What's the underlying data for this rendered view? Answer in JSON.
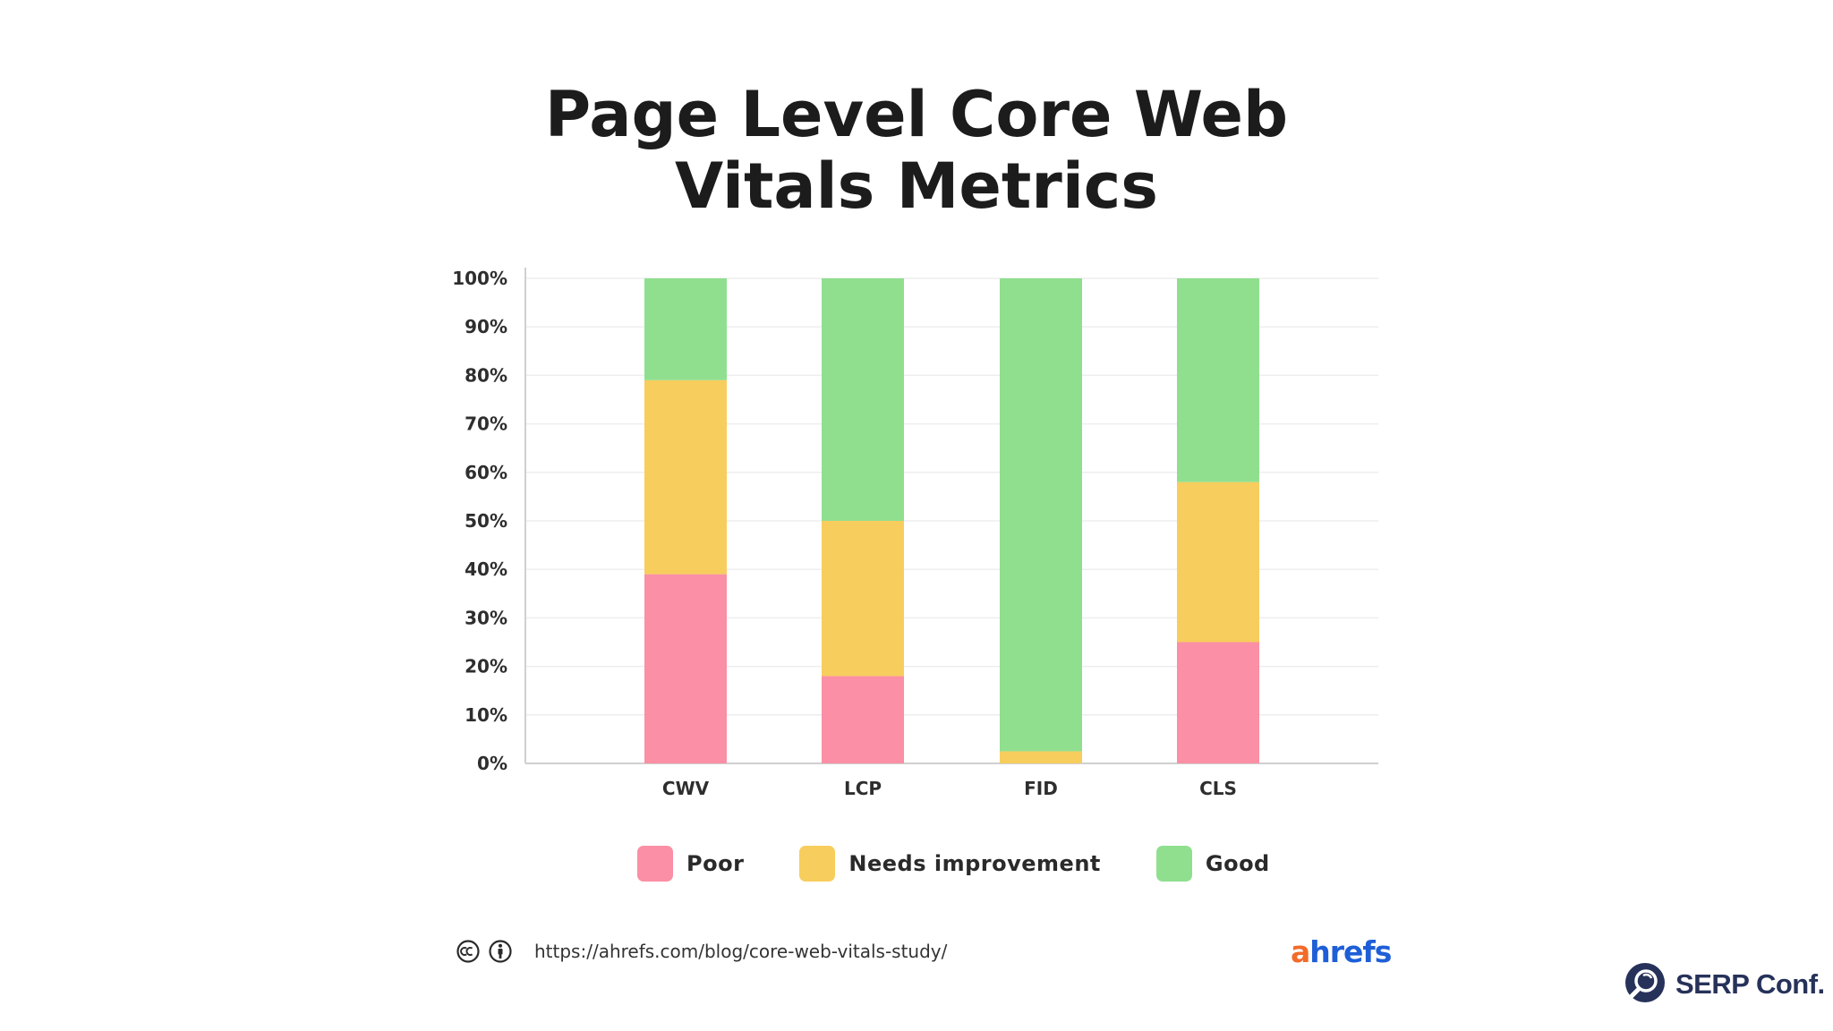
{
  "chart_data": {
    "type": "bar",
    "stacked": true,
    "title_lines": [
      "Page Level Core Web",
      "Vitals Metrics"
    ],
    "categories": [
      "CWV",
      "LCP",
      "FID",
      "CLS"
    ],
    "series": [
      {
        "name": "Poor",
        "color": "#fb8fa5",
        "values": [
          39,
          18,
          0,
          25
        ]
      },
      {
        "name": "Needs improvement",
        "color": "#f7cd5d",
        "values": [
          40,
          32,
          2.5,
          33
        ]
      },
      {
        "name": "Good",
        "color": "#90df8f",
        "values": [
          21,
          50,
          97.5,
          42
        ]
      }
    ],
    "ylim": [
      0,
      100
    ],
    "yticks": [
      "0%",
      "10%",
      "20%",
      "30%",
      "40%",
      "50%",
      "60%",
      "70%",
      "80%",
      "90%",
      "100%"
    ],
    "grid": true,
    "legend_position": "bottom"
  },
  "footer": {
    "source_url": "https://ahrefs.com/blog/core-web-vitals-study/",
    "license_icons": [
      "creative-commons-icon",
      "attribution-icon"
    ]
  },
  "branding": {
    "ahrefs_logo": {
      "first": "a",
      "rest": "hrefs"
    },
    "serp_conf_logo": "SERP Conf."
  }
}
